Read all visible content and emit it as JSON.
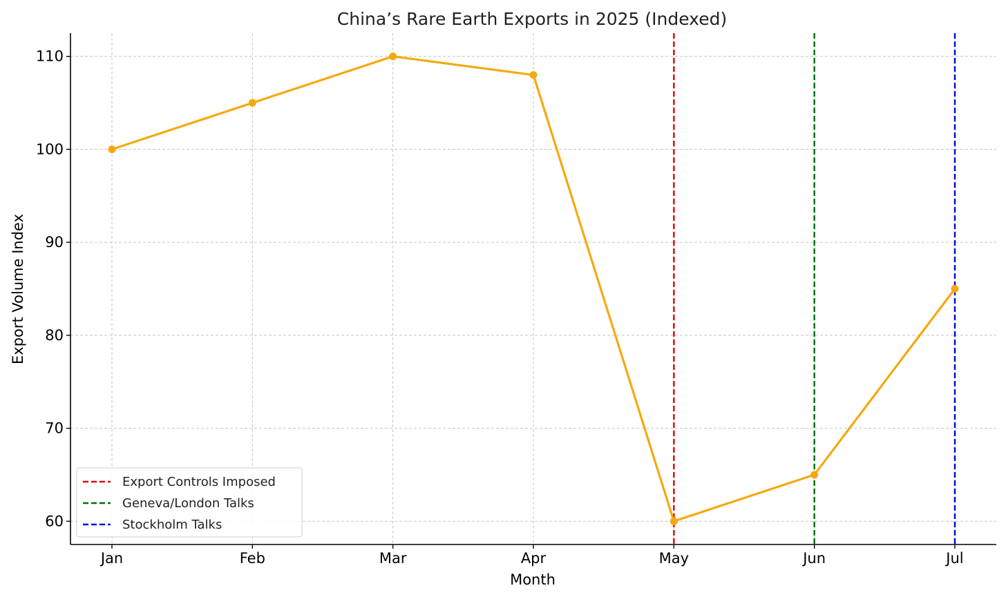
{
  "chart_data": {
    "type": "line",
    "title": "China’s Rare Earth Exports in 2025 (Indexed)",
    "xlabel": "Month",
    "ylabel": "Export Volume Index",
    "categories": [
      "Jan",
      "Feb",
      "Mar",
      "Apr",
      "May",
      "Jun",
      "Jul"
    ],
    "series": [
      {
        "values": [
          100,
          105,
          110,
          108,
          60,
          65,
          85
        ],
        "color": "#f5a90f"
      }
    ],
    "ylim": [
      57.5,
      112.5
    ],
    "yticks": [
      60,
      70,
      80,
      90,
      100,
      110
    ],
    "grid": true,
    "legend_position": "bottom-left",
    "events": [
      {
        "label": "Export Controls Imposed",
        "x": "May",
        "color": "#e00000"
      },
      {
        "label": "Geneva/London Talks",
        "x": "Jun",
        "color": "#007000"
      },
      {
        "label": "Stockholm Talks",
        "x": "Jul",
        "color": "#0000dd"
      }
    ]
  }
}
